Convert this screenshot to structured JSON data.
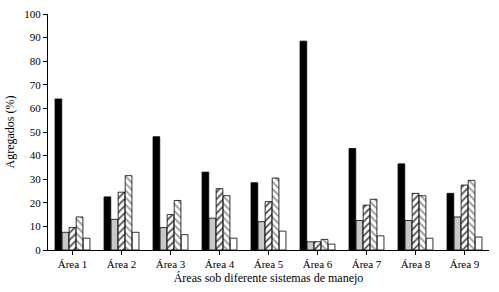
{
  "chart_data": {
    "type": "bar",
    "x_label": "Áreas sob diferente sistemas de manejo",
    "y_label": "Agregados (%)",
    "categories": [
      "Área 1",
      "Área 2",
      "Área 3",
      "Área 4",
      "Área 5",
      "Área 6",
      "Área 7",
      "Área 8",
      "Área 9"
    ],
    "series": [
      {
        "color": "#000000",
        "marker": "solid",
        "values": [
          64,
          22.5,
          48,
          33,
          28.5,
          88.5,
          43,
          36.5,
          24
        ]
      },
      {
        "color": "#c8c8c8",
        "marker": "solid",
        "values": [
          7.5,
          13,
          9.5,
          13.5,
          12,
          3.5,
          12.5,
          12.5,
          14
        ]
      },
      {
        "color": "#555555",
        "marker": "hatch_right",
        "values": [
          9.5,
          24.5,
          15,
          26,
          20.5,
          3.5,
          19,
          24,
          27.5
        ]
      },
      {
        "color": "#999999",
        "marker": "hatch_left",
        "values": [
          14,
          31.5,
          21,
          23,
          30.5,
          4.5,
          21.5,
          23,
          29.5
        ]
      },
      {
        "color": "#ffffff",
        "marker": "solid",
        "values": [
          5,
          7.5,
          6.5,
          5,
          8,
          2.5,
          6,
          5,
          5.5
        ]
      }
    ],
    "ylim": [
      0,
      100
    ],
    "yticks": [
      0,
      10,
      20,
      30,
      40,
      50,
      60,
      70,
      80,
      90,
      100
    ],
    "grid": false
  }
}
